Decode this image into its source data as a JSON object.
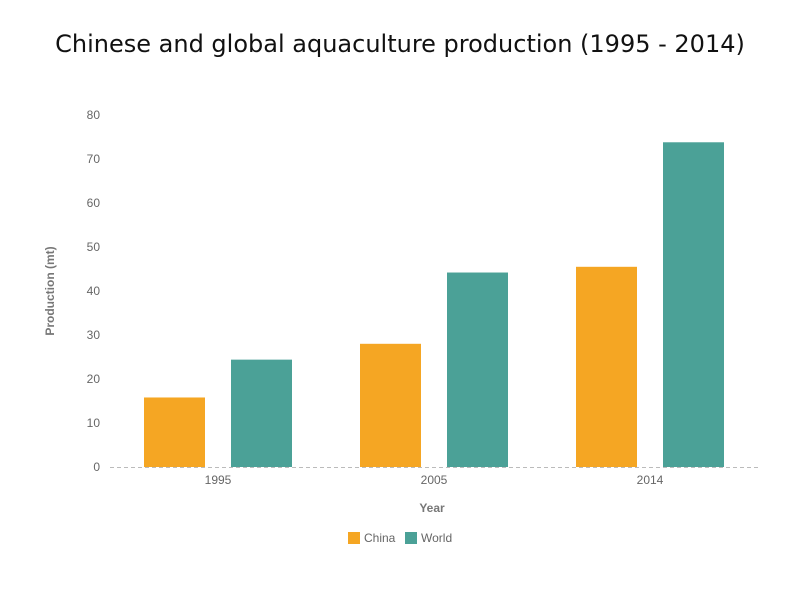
{
  "chart_data": {
    "type": "bar",
    "title": "Chinese and global aquaculture production (1995 - 2014)",
    "xlabel": "Year",
    "ylabel": "Production (mt)",
    "categories": [
      "1995",
      "2005",
      "2014"
    ],
    "series": [
      {
        "name": "China",
        "values": [
          15.8,
          28.0,
          45.5
        ],
        "color": "#F5A623"
      },
      {
        "name": "World",
        "values": [
          24.4,
          44.2,
          73.8
        ],
        "color": "#4BA197"
      }
    ],
    "ylim": [
      0,
      80
    ],
    "yticks": [
      0,
      10,
      20,
      30,
      40,
      50,
      60,
      70,
      80
    ],
    "grid": false,
    "legend_position": "bottom-center"
  }
}
